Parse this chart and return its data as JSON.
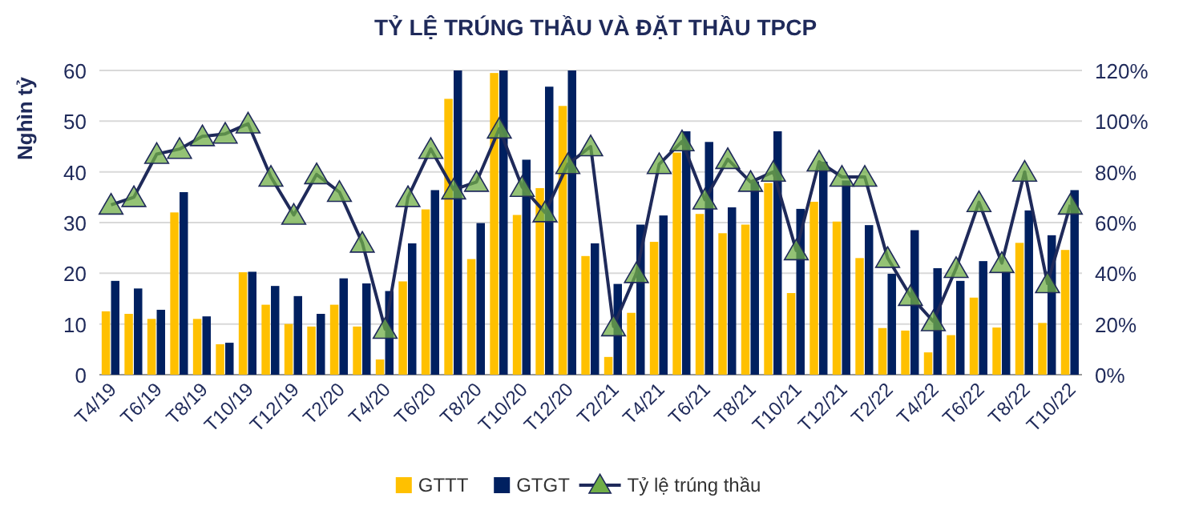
{
  "chart_data": {
    "type": "bar",
    "title": "TỶ LỆ TRÚNG THẦU VÀ ĐẶT THẦU TPCP",
    "ylabel": "Nghìn tỷ",
    "categories": [
      "T4/19",
      null,
      "T6/19",
      null,
      "T8/19",
      null,
      "T10/19",
      null,
      "T12/19",
      null,
      "T2/20",
      null,
      "T4/20",
      null,
      "T6/20",
      null,
      "T8/20",
      null,
      "T10/20",
      null,
      "T12/20",
      null,
      "T2/21",
      null,
      "T4/21",
      null,
      "T6/21",
      null,
      "T8/21",
      null,
      "T10/21",
      null,
      "T12/21",
      null,
      "T2/22",
      null,
      "T4/22",
      null,
      "T6/22",
      null,
      "T8/22",
      null,
      "T10/22"
    ],
    "series": [
      {
        "name": "GTTT",
        "color": "#ffc000",
        "values": [
          12.5,
          12,
          11,
          32,
          11,
          6,
          20.2,
          13.8,
          10,
          9.5,
          13.8,
          9.5,
          3,
          18.4,
          32.6,
          54.4,
          22.8,
          59.5,
          31.5,
          36.8,
          53,
          23.4,
          3.5,
          12.2,
          26.2,
          43.8,
          31.7,
          27.9,
          29.6,
          37.8,
          16.1,
          34.1,
          30.2,
          23,
          9.2,
          8.7,
          4.4,
          7.8,
          15.2,
          9.3,
          26,
          10.2,
          24.6
        ]
      },
      {
        "name": "GTGT",
        "color": "#002060",
        "values": [
          18.5,
          17,
          12.8,
          36,
          11.5,
          6.3,
          20.3,
          17.5,
          15.5,
          12,
          19,
          18,
          16.5,
          25.9,
          36.4,
          60,
          29.9,
          60,
          42.4,
          56.8,
          60,
          25.9,
          17.9,
          29.6,
          31.4,
          48,
          45.9,
          33,
          38.1,
          48,
          32.7,
          42,
          38.3,
          29.5,
          19.9,
          28.5,
          21,
          18.5,
          22.4,
          20.3,
          32.4,
          27.5,
          36.4
        ]
      },
      {
        "name": "Tỷ lệ trúng thầu",
        "type": "line",
        "axis": "y2",
        "color": "#70ad47",
        "marker": "triangle",
        "values": [
          67,
          70,
          87,
          89,
          94,
          95,
          99,
          78,
          63,
          79,
          72,
          52,
          18,
          70,
          89,
          73,
          76,
          97,
          74,
          64,
          83,
          90,
          19,
          40,
          83,
          92,
          69,
          85,
          76,
          80,
          49,
          84,
          78,
          78,
          46,
          31,
          21,
          42,
          68,
          44,
          80,
          36,
          67
        ]
      }
    ],
    "ylim": [
      0,
      60
    ],
    "yticks": [
      0,
      10,
      20,
      30,
      40,
      50,
      60
    ],
    "y2lim": [
      0,
      120
    ],
    "y2ticks": [
      {
        "value": 0,
        "label": "0%"
      },
      {
        "value": 20,
        "label": "20%"
      },
      {
        "value": 40,
        "label": "40%"
      },
      {
        "value": 60,
        "label": "60%"
      },
      {
        "value": 80,
        "label": "80%"
      },
      {
        "value": 100,
        "label": "100%"
      },
      {
        "value": 120,
        "label": "120%"
      }
    ],
    "grid": "y",
    "legend": "bottom"
  }
}
